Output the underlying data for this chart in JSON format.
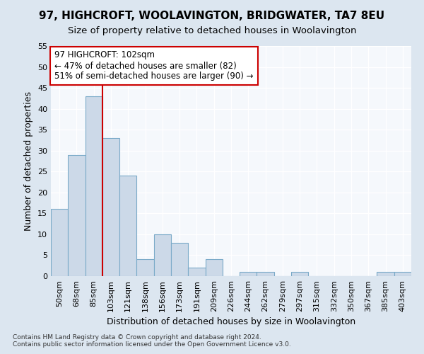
{
  "title": "97, HIGHCROFT, WOOLAVINGTON, BRIDGWATER, TA7 8EU",
  "subtitle": "Size of property relative to detached houses in Woolavington",
  "xlabel": "Distribution of detached houses by size in Woolavington",
  "ylabel": "Number of detached properties",
  "categories": [
    "50sqm",
    "68sqm",
    "85sqm",
    "103sqm",
    "121sqm",
    "138sqm",
    "156sqm",
    "173sqm",
    "191sqm",
    "209sqm",
    "226sqm",
    "244sqm",
    "262sqm",
    "279sqm",
    "297sqm",
    "315sqm",
    "332sqm",
    "350sqm",
    "367sqm",
    "385sqm",
    "403sqm"
  ],
  "values": [
    16,
    29,
    43,
    33,
    24,
    4,
    10,
    8,
    2,
    4,
    0,
    1,
    1,
    0,
    1,
    0,
    0,
    0,
    0,
    1,
    1
  ],
  "bar_color": "#ccd9e8",
  "bar_edge_color": "#7aaac8",
  "highlight_bar_index": 3,
  "highlight_color": "#cc0000",
  "annotation_text": "97 HIGHCROFT: 102sqm\n← 47% of detached houses are smaller (82)\n51% of semi-detached houses are larger (90) →",
  "annotation_box_facecolor": "#ffffff",
  "annotation_box_edgecolor": "#cc0000",
  "ylim": [
    0,
    55
  ],
  "yticks": [
    0,
    5,
    10,
    15,
    20,
    25,
    30,
    35,
    40,
    45,
    50,
    55
  ],
  "fig_bg_color": "#dce6f0",
  "plot_bg_color": "#f5f8fc",
  "title_fontsize": 11,
  "subtitle_fontsize": 9.5,
  "tick_fontsize": 8,
  "ylabel_fontsize": 9,
  "xlabel_fontsize": 9,
  "footnote1": "Contains HM Land Registry data © Crown copyright and database right 2024.",
  "footnote2": "Contains public sector information licensed under the Open Government Licence v3.0."
}
